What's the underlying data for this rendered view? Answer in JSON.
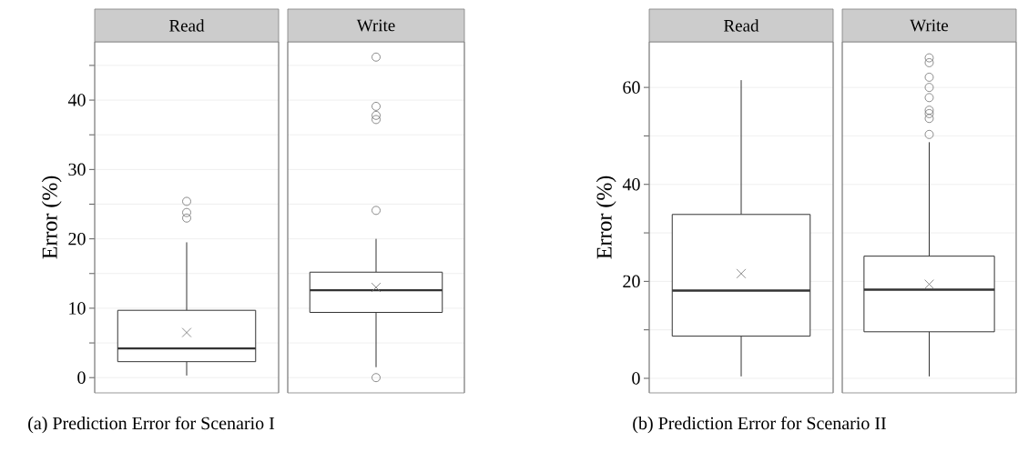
{
  "chart_data": [
    {
      "type": "box",
      "categories": [
        "Read",
        "Write"
      ],
      "ylabel": "Error (%)",
      "ylim": [
        -2.2,
        48.4
      ],
      "yticks": [
        0,
        {
          "value": 5,
          "label": null
        },
        10,
        {
          "value": 15,
          "label": null
        },
        20,
        {
          "value": 25,
          "label": null
        },
        30,
        {
          "value": 35,
          "label": null
        },
        40,
        {
          "value": 45,
          "label": null
        }
      ],
      "grid": "y",
      "boxes": [
        {
          "low": 0.3,
          "q1": 2.3,
          "median": 4.2,
          "q3": 9.7,
          "high": 19.5,
          "mean": 6.5,
          "outliers": [
            25.4,
            23.8,
            23.0
          ]
        },
        {
          "low": 1.5,
          "q1": 9.4,
          "median": 12.6,
          "q3": 15.2,
          "high": 20.0,
          "mean": 13.0,
          "outliers": [
            0.0,
            24.1,
            37.2,
            37.8,
            39.1,
            46.2
          ]
        }
      ],
      "annotations": [
        "(a) Prediction Error for Scenario I"
      ]
    },
    {
      "type": "box",
      "categories": [
        "Read",
        "Write"
      ],
      "ylabel": "Error (%)",
      "ylim": [
        -3,
        69.4
      ],
      "yticks": [
        0,
        {
          "value": 10,
          "label": null
        },
        20,
        {
          "value": 30,
          "label": null
        },
        40,
        {
          "value": 50,
          "label": null
        },
        60
      ],
      "grid": "y",
      "boxes": [
        {
          "low": 0.4,
          "q1": 8.7,
          "median": 18.1,
          "q3": 33.8,
          "high": 61.5,
          "mean": 21.6
        },
        {
          "low": 0.4,
          "q1": 9.6,
          "median": 18.3,
          "q3": 25.2,
          "high": 48.7,
          "mean": 19.4,
          "outliers": [
            66.1,
            65.1,
            62.1,
            60.0,
            57.9,
            55.3,
            54.6,
            53.6,
            50.3
          ]
        }
      ],
      "annotations": [
        "(b) Prediction Error for Scenario II"
      ]
    }
  ]
}
